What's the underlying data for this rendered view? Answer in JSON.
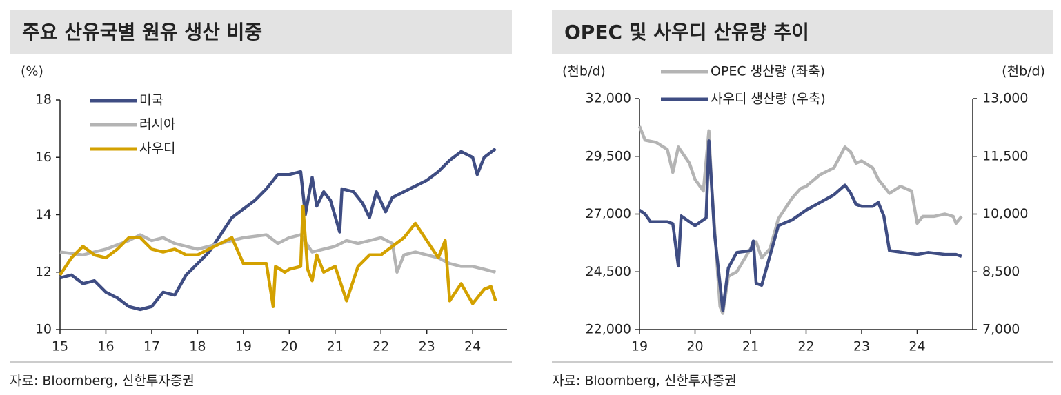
{
  "chart_data": [
    {
      "type": "line",
      "title": "주요 산유국별 원유 생산 비중",
      "y_label": "(%)",
      "source": "자료: Bloomberg, 신한투자증권",
      "xlim": [
        15,
        24.75
      ],
      "xticks": [
        15,
        16,
        17,
        18,
        19,
        20,
        21,
        22,
        23,
        24
      ],
      "ylim": [
        10,
        18
      ],
      "yticks": [
        10,
        12,
        14,
        16,
        18
      ],
      "series": [
        {
          "name": "미국",
          "color": "#3f4d83",
          "x": [
            15.0,
            15.25,
            15.5,
            15.75,
            16.0,
            16.25,
            16.5,
            16.75,
            17.0,
            17.25,
            17.5,
            17.75,
            18.0,
            18.25,
            18.5,
            18.75,
            19.0,
            19.25,
            19.5,
            19.75,
            20.0,
            20.25,
            20.35,
            20.5,
            20.6,
            20.75,
            20.9,
            21.1,
            21.15,
            21.4,
            21.6,
            21.75,
            21.9,
            22.1,
            22.25,
            22.5,
            22.75,
            23.0,
            23.25,
            23.5,
            23.75,
            24.0,
            24.1,
            24.25,
            24.5
          ],
          "values": [
            11.8,
            11.9,
            11.6,
            11.7,
            11.3,
            11.1,
            10.8,
            10.7,
            10.8,
            11.3,
            11.2,
            11.9,
            12.3,
            12.7,
            13.3,
            13.9,
            14.2,
            14.5,
            14.9,
            15.4,
            15.4,
            15.5,
            14.0,
            15.3,
            14.3,
            14.8,
            14.5,
            13.4,
            14.9,
            14.8,
            14.4,
            13.9,
            14.8,
            14.1,
            14.6,
            14.8,
            15.0,
            15.2,
            15.5,
            15.9,
            16.2,
            16.0,
            15.4,
            16.0,
            16.3
          ]
        },
        {
          "name": "러시아",
          "color": "#b4b4b4",
          "x": [
            15.0,
            15.5,
            16.0,
            16.5,
            16.75,
            17.0,
            17.25,
            17.5,
            17.75,
            18.0,
            18.5,
            19.0,
            19.5,
            19.75,
            20.0,
            20.25,
            20.5,
            20.75,
            21.0,
            21.25,
            21.5,
            21.75,
            22.0,
            22.25,
            22.35,
            22.5,
            22.75,
            23.0,
            23.25,
            23.5,
            23.75,
            24.0,
            24.25,
            24.5
          ],
          "values": [
            12.7,
            12.6,
            12.8,
            13.1,
            13.3,
            13.1,
            13.2,
            13.0,
            12.9,
            12.8,
            13.0,
            13.2,
            13.3,
            13.0,
            13.2,
            13.3,
            12.7,
            12.8,
            12.9,
            13.1,
            13.0,
            13.1,
            13.2,
            13.0,
            12.0,
            12.6,
            12.7,
            12.6,
            12.5,
            12.3,
            12.2,
            12.2,
            12.1,
            12.0
          ]
        },
        {
          "name": "사우디",
          "color": "#d3a100",
          "x": [
            15.0,
            15.25,
            15.5,
            15.75,
            16.0,
            16.25,
            16.5,
            16.75,
            17.0,
            17.25,
            17.5,
            17.75,
            18.0,
            18.25,
            18.5,
            18.75,
            19.0,
            19.25,
            19.5,
            19.65,
            19.7,
            19.9,
            20.0,
            20.25,
            20.3,
            20.4,
            20.5,
            20.6,
            20.75,
            21.0,
            21.25,
            21.5,
            21.75,
            22.0,
            22.25,
            22.5,
            22.75,
            23.0,
            23.25,
            23.4,
            23.5,
            23.75,
            24.0,
            24.25,
            24.4,
            24.5
          ],
          "values": [
            11.9,
            12.5,
            12.9,
            12.6,
            12.5,
            12.8,
            13.2,
            13.2,
            12.8,
            12.7,
            12.8,
            12.6,
            12.6,
            12.8,
            13.0,
            13.2,
            12.3,
            12.3,
            12.3,
            10.8,
            12.2,
            12.0,
            12.1,
            12.2,
            14.3,
            12.1,
            11.7,
            12.6,
            12.0,
            12.2,
            11.0,
            12.2,
            12.6,
            12.6,
            12.9,
            13.2,
            13.7,
            13.1,
            12.5,
            13.1,
            11.0,
            11.6,
            10.9,
            11.4,
            11.5,
            11.0
          ]
        }
      ]
    },
    {
      "type": "line",
      "title": "OPEC 및 사우디 산유량 추이",
      "y_label": "(천b/d)",
      "y2_label": "(천b/d)",
      "source": "자료: Bloomberg, 신한투자증권",
      "xlim": [
        19,
        25
      ],
      "xticks": [
        19,
        20,
        21,
        22,
        23,
        24
      ],
      "ylim": [
        22000,
        32000
      ],
      "yticks": [
        {
          "value": 22000,
          "label": "22,000"
        },
        {
          "value": 24500,
          "label": "24,500"
        },
        {
          "value": 27000,
          "label": "27,000"
        },
        {
          "value": 29500,
          "label": "29,500"
        },
        {
          "value": 32000,
          "label": "32,000"
        }
      ],
      "y2lim": [
        7000,
        13000
      ],
      "y2ticks": [
        {
          "value": 7000,
          "label": "7,000"
        },
        {
          "value": 8500,
          "label": "8,500"
        },
        {
          "value": 10000,
          "label": "10,000"
        },
        {
          "value": 11500,
          "label": "11,500"
        },
        {
          "value": 13000,
          "label": "13,000"
        }
      ],
      "series": [
        {
          "name": "OPEC 생산량 (좌축)",
          "color": "#b4b4b4",
          "x": [
            19.0,
            19.1,
            19.3,
            19.5,
            19.6,
            19.7,
            19.9,
            20.0,
            20.15,
            20.25,
            20.3,
            20.45,
            20.5,
            20.6,
            20.75,
            21.0,
            21.1,
            21.2,
            21.35,
            21.5,
            21.75,
            21.9,
            22.0,
            22.25,
            22.5,
            22.7,
            22.8,
            22.9,
            23.0,
            23.2,
            23.3,
            23.5,
            23.7,
            23.9,
            24.0,
            24.1,
            24.3,
            24.5,
            24.65,
            24.7,
            24.8
          ],
          "values": [
            30800,
            30200,
            30100,
            29800,
            28800,
            29900,
            29200,
            28500,
            28000,
            30600,
            28200,
            23000,
            22700,
            24300,
            24500,
            25500,
            25800,
            25100,
            25500,
            26800,
            27700,
            28100,
            28200,
            28700,
            29000,
            29900,
            29700,
            29200,
            29300,
            29000,
            28500,
            27900,
            28200,
            28000,
            26600,
            26900,
            26900,
            27000,
            26900,
            26600,
            26900
          ]
        },
        {
          "name": "사우디 생산량 (우축)",
          "color": "#3f4d83",
          "axis": "y2",
          "x": [
            19.0,
            19.1,
            19.2,
            19.5,
            19.6,
            19.7,
            19.75,
            19.9,
            20.0,
            20.2,
            20.25,
            20.35,
            20.5,
            20.6,
            20.75,
            21.0,
            21.05,
            21.1,
            21.2,
            21.5,
            21.75,
            21.9,
            22.0,
            22.25,
            22.5,
            22.7,
            22.8,
            22.9,
            23.0,
            23.2,
            23.3,
            23.4,
            23.5,
            23.75,
            24.0,
            24.2,
            24.5,
            24.7,
            24.8
          ],
          "values": [
            10100,
            10000,
            9800,
            9800,
            9750,
            8650,
            9950,
            9800,
            9700,
            9900,
            11900,
            9500,
            7500,
            8600,
            9000,
            9050,
            9300,
            8200,
            8150,
            9700,
            9850,
            10000,
            10100,
            10300,
            10500,
            10750,
            10550,
            10250,
            10200,
            10200,
            10300,
            9950,
            9050,
            9000,
            8950,
            9000,
            8950,
            8950,
            8900
          ]
        }
      ]
    }
  ]
}
